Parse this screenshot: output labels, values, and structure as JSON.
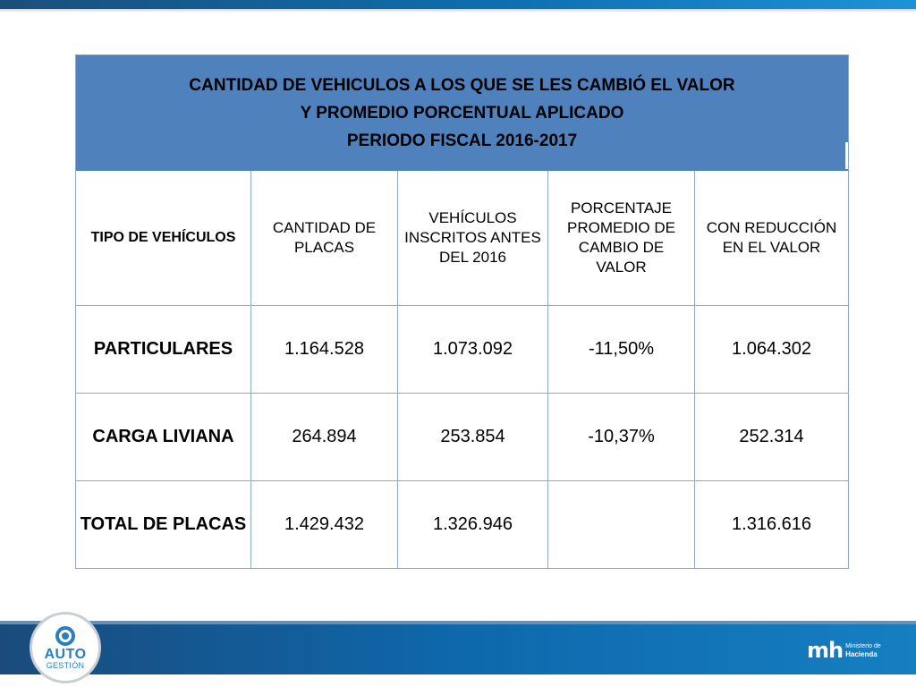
{
  "table": {
    "title_lines": [
      "CANTIDAD DE VEHICULOS A LOS QUE SE LES CAMBIÓ EL VALOR",
      "Y PROMEDIO PORCENTUAL APLICADO",
      "PERIODO FISCAL 2016-2017"
    ],
    "headers": [
      "TIPO DE VEHÍCULOS",
      "CANTIDAD DE PLACAS",
      "VEHÍCULOS INSCRITOS ANTES DEL 2016",
      "PORCENTAJE PROMEDIO DE CAMBIO DE VALOR",
      "CON REDUCCIÓN EN EL VALOR"
    ],
    "rows": [
      {
        "label": "PARTICULARES",
        "placas": "1.164.528",
        "inscritos": "1.073.092",
        "porcentaje": "-11,50%",
        "reduccion": "1.064.302"
      },
      {
        "label": "CARGA LIVIANA",
        "placas": "264.894",
        "inscritos": "253.854",
        "porcentaje": "-10,37%",
        "reduccion": "252.314"
      },
      {
        "label": "TOTAL DE PLACAS",
        "placas": "1.429.432",
        "inscritos": "1.326.946",
        "porcentaje": "",
        "reduccion": "1.316.616"
      }
    ]
  },
  "footer": {
    "badge_auto": "AUTO",
    "badge_gestion": "GESTIÓN",
    "badge_icon": "wheel-icon",
    "ministry_mark": "mh",
    "ministry_line1": "Ministerio de",
    "ministry_line2": "Hacienda"
  },
  "colors": {
    "title_bg": "#4f81bd",
    "bar_blue": "#0e68ab",
    "grid_line": "#8da9c8"
  }
}
